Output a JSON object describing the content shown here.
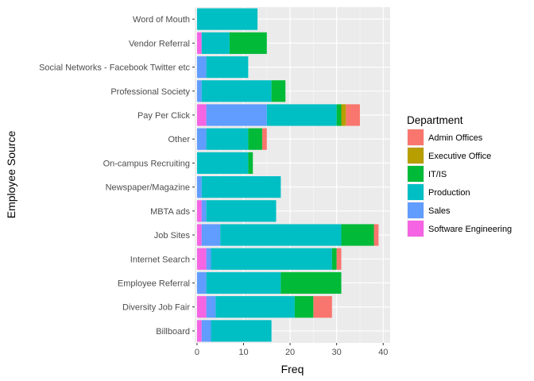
{
  "chart_data": {
    "type": "bar",
    "orientation": "horizontal",
    "stacked": true,
    "xlabel": "Freq",
    "ylabel": "Employee Source",
    "xlim": [
      0,
      40
    ],
    "xticks": [
      0,
      10,
      20,
      30,
      40
    ],
    "grid": true,
    "legend_position": "right",
    "legend_title": "Department",
    "categories": [
      "Word of Mouth",
      "Vendor Referral",
      "Social Networks - Facebook Twitter etc",
      "Professional Society",
      "Pay Per Click",
      "Other",
      "On-campus Recruiting",
      "Newspaper/Magazine",
      "MBTA ads",
      "Job Sites",
      "Internet Search",
      "Employee Referral",
      "Diversity Job Fair",
      "Billboard"
    ],
    "series": [
      {
        "name": "Software Engineering",
        "color": "#F564E3",
        "values": [
          0,
          1,
          0,
          0,
          2,
          0,
          0,
          0,
          1,
          1,
          2,
          0,
          2,
          1
        ]
      },
      {
        "name": "Sales",
        "color": "#619CFF",
        "values": [
          0,
          0,
          2,
          1,
          13,
          2,
          0,
          1,
          1,
          4,
          1,
          2,
          2,
          2
        ]
      },
      {
        "name": "Production",
        "color": "#00BFC4",
        "values": [
          13,
          6,
          9,
          15,
          15,
          9,
          11,
          17,
          15,
          26,
          26,
          16,
          17,
          13
        ]
      },
      {
        "name": "IT/IS",
        "color": "#00BA38",
        "values": [
          0,
          8,
          0,
          3,
          1,
          3,
          1,
          0,
          0,
          7,
          1,
          13,
          4,
          0
        ]
      },
      {
        "name": "Executive Office",
        "color": "#B79F00",
        "values": [
          0,
          0,
          0,
          0,
          1,
          0,
          0,
          0,
          0,
          0,
          0,
          0,
          0,
          0
        ]
      },
      {
        "name": "Admin Offices",
        "color": "#F8766D",
        "values": [
          0,
          0,
          0,
          0,
          3,
          1,
          0,
          0,
          0,
          1,
          1,
          0,
          4,
          0
        ]
      }
    ],
    "legend_order": [
      "Admin Offices",
      "Executive Office",
      "IT/IS",
      "Production",
      "Sales",
      "Software Engineering"
    ]
  }
}
